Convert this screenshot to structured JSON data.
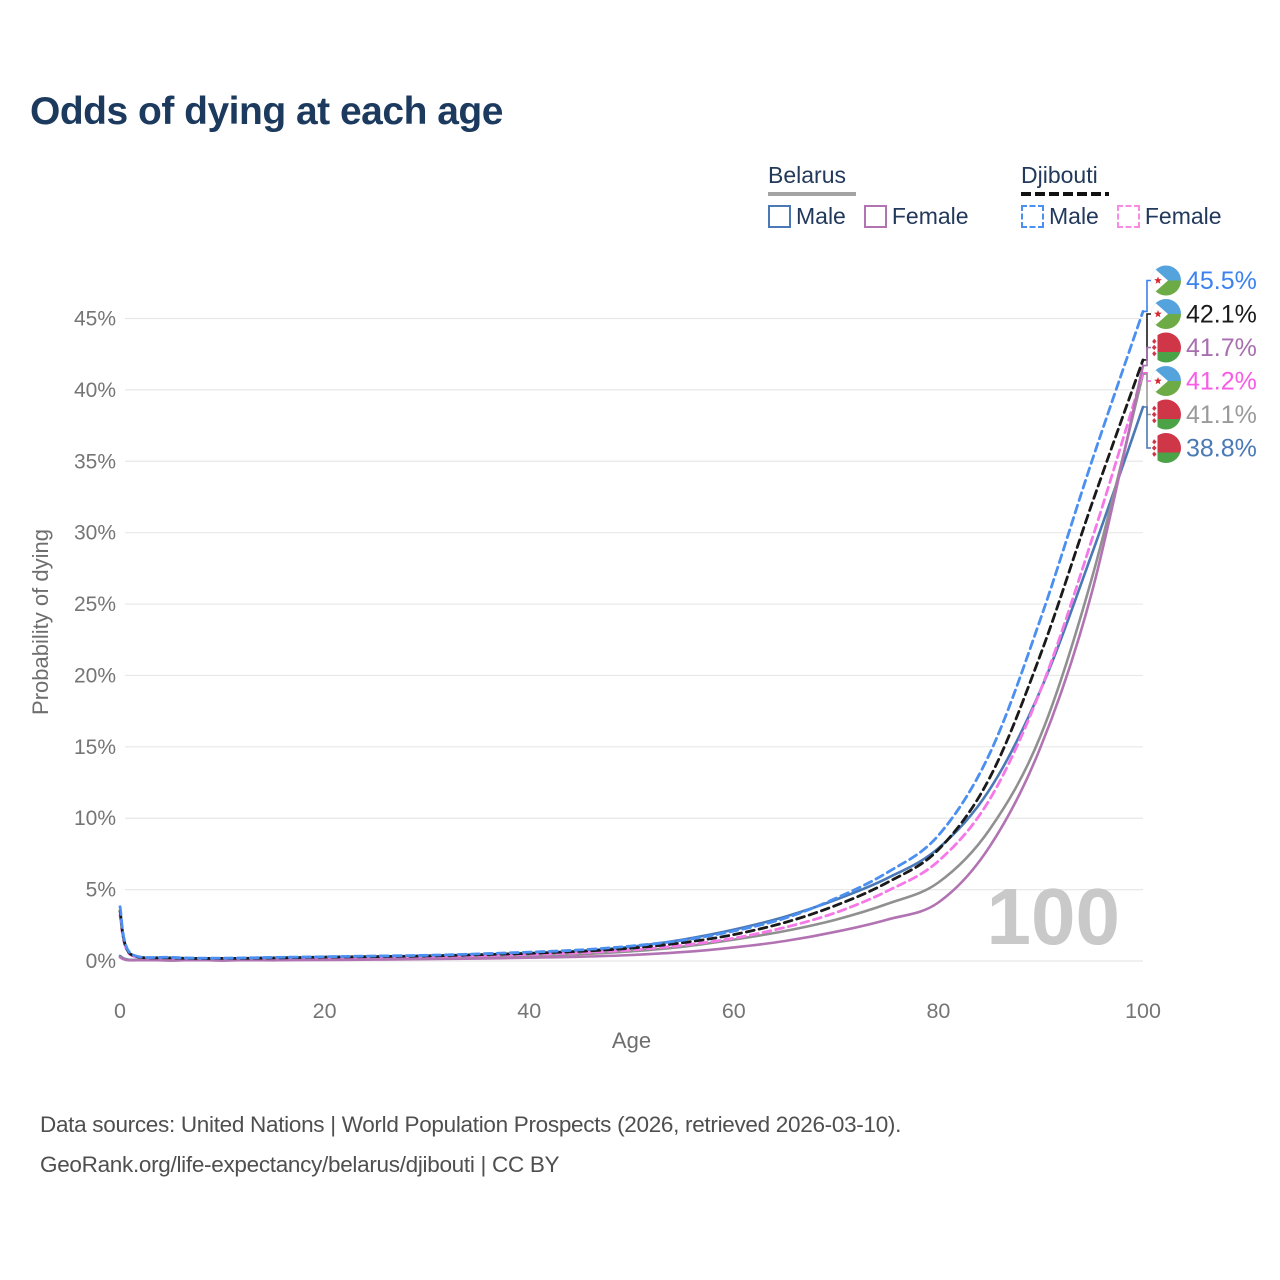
{
  "header": {
    "title": "Odds of dying at each age"
  },
  "legend": {
    "groups": [
      {
        "name": "Belarus",
        "line_style": "solid",
        "items": [
          {
            "label": "Male",
            "color": "#4a79b6",
            "dashed": false
          },
          {
            "label": "Female",
            "color": "#b273b2",
            "dashed": false
          }
        ]
      },
      {
        "name": "Djibouti",
        "line_style": "dashed",
        "items": [
          {
            "label": "Male",
            "color": "#4b8ff0",
            "dashed": true
          },
          {
            "label": "Female",
            "color": "#f88ae8",
            "dashed": true
          }
        ]
      }
    ]
  },
  "chart_data": {
    "type": "line",
    "title": "Odds of dying at each age",
    "xlabel": "Age",
    "ylabel": "Probability of dying",
    "xlim": [
      0,
      100
    ],
    "ylim": [
      0,
      47
    ],
    "grid": true,
    "watermark": "100",
    "x_ticks": [
      "0",
      "20",
      "40",
      "60",
      "80",
      "100"
    ],
    "y_ticks": [
      "0%",
      "5%",
      "10%",
      "15%",
      "20%",
      "25%",
      "30%",
      "35%",
      "40%",
      "45%"
    ],
    "x": [
      0,
      1,
      5,
      10,
      15,
      20,
      25,
      30,
      35,
      40,
      45,
      50,
      55,
      60,
      65,
      70,
      75,
      80,
      85,
      90,
      95,
      100
    ],
    "series": [
      {
        "name": "Djibouti Male",
        "country": "Djibouti",
        "sex": "male",
        "flag": "djibouti-flag",
        "color": "#4b8ff0",
        "label_color": "#3b82f0",
        "dashed": true,
        "end_label": "45.5%",
        "values": [
          3.8,
          0.55,
          0.25,
          0.2,
          0.25,
          0.3,
          0.35,
          0.4,
          0.5,
          0.62,
          0.78,
          1.05,
          1.45,
          2.1,
          3.0,
          4.4,
          6.2,
          8.8,
          14.5,
          24.0,
          35.0,
          45.5
        ]
      },
      {
        "name": "Djibouti (both sexes)",
        "country": "Djibouti",
        "sex": "both",
        "flag": "djibouti-flag",
        "color": "#1a1a1a",
        "label_color": "#1a1a1a",
        "dashed": true,
        "end_label": "42.1%",
        "values": [
          3.5,
          0.5,
          0.22,
          0.18,
          0.22,
          0.27,
          0.31,
          0.36,
          0.44,
          0.54,
          0.68,
          0.9,
          1.28,
          1.85,
          2.7,
          3.9,
          5.5,
          7.8,
          12.8,
          21.5,
          32.0,
          42.1
        ]
      },
      {
        "name": "Belarus Female",
        "country": "Belarus",
        "sex": "female",
        "flag": "belarus-flag",
        "color": "#b273b2",
        "label_color": "#a86fb0",
        "dashed": false,
        "end_label": "41.7%",
        "values": [
          0.25,
          0.05,
          0.03,
          0.03,
          0.05,
          0.07,
          0.1,
          0.13,
          0.17,
          0.23,
          0.3,
          0.42,
          0.62,
          0.95,
          1.4,
          2.05,
          2.9,
          4.1,
          8.0,
          15.0,
          25.8,
          41.7
        ]
      },
      {
        "name": "Djibouti Female",
        "country": "Djibouti",
        "sex": "female",
        "flag": "djibouti-flag",
        "color": "#f678e8",
        "label_color": "#f75ce5",
        "dashed": true,
        "end_label": "41.2%",
        "values": [
          3.2,
          0.45,
          0.2,
          0.16,
          0.2,
          0.24,
          0.27,
          0.31,
          0.38,
          0.46,
          0.58,
          0.78,
          1.1,
          1.6,
          2.35,
          3.4,
          4.9,
          7.0,
          11.3,
          19.0,
          29.5,
          41.2
        ]
      },
      {
        "name": "Belarus (both sexes)",
        "country": "Belarus",
        "sex": "both",
        "flag": "belarus-flag",
        "color": "#909090",
        "label_color": "#9a9a9a",
        "dashed": false,
        "end_label": "41.1%",
        "values": [
          0.3,
          0.06,
          0.04,
          0.04,
          0.07,
          0.11,
          0.15,
          0.2,
          0.27,
          0.36,
          0.48,
          0.68,
          1.0,
          1.5,
          2.1,
          2.9,
          4.0,
          5.5,
          9.2,
          15.8,
          26.8,
          41.1
        ]
      },
      {
        "name": "Belarus Male",
        "country": "Belarus",
        "sex": "male",
        "flag": "belarus-flag",
        "color": "#4a79b6",
        "label_color": "#4a79b6",
        "dashed": false,
        "end_label": "38.8%",
        "values": [
          0.35,
          0.08,
          0.05,
          0.05,
          0.09,
          0.16,
          0.22,
          0.3,
          0.4,
          0.52,
          0.7,
          1.0,
          1.5,
          2.2,
          3.1,
          4.3,
          5.8,
          7.9,
          12.0,
          19.0,
          28.5,
          38.8
        ]
      }
    ]
  },
  "footer": {
    "line1": "Data sources: United Nations | World Population Prospects (2026, retrieved 2026-03-10).",
    "line2": "GeoRank.org/life-expectancy/belarus/djibouti | CC BY"
  }
}
